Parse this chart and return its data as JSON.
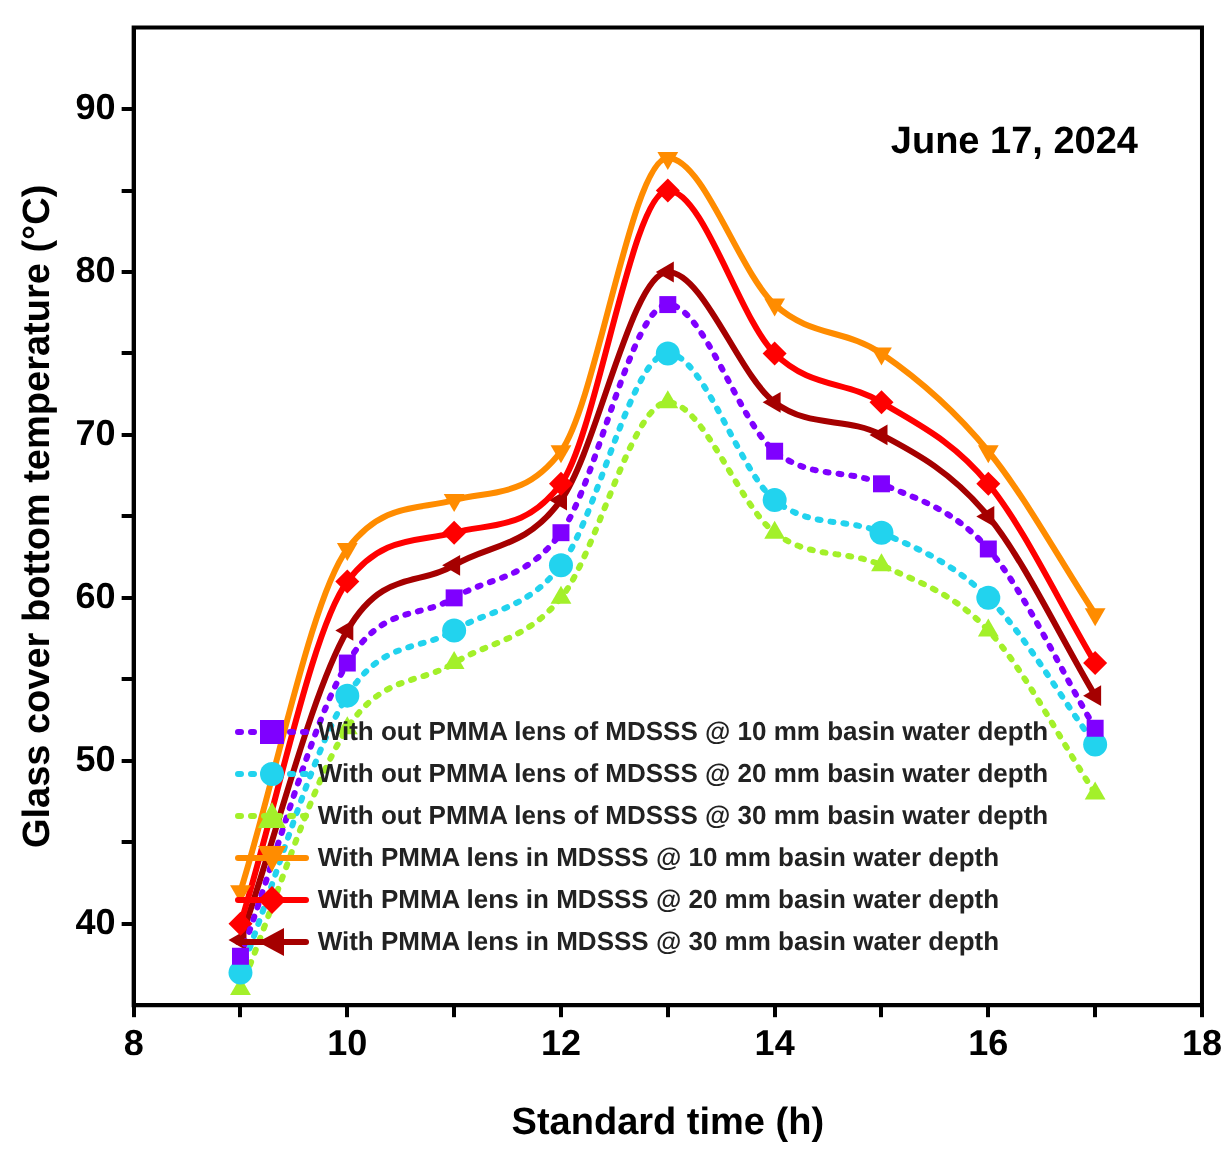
{
  "chart_data": {
    "type": "line",
    "annotations": [
      "June 17, 2024"
    ],
    "xlabel": "Standard time (h)",
    "ylabel": "Glass cover bottom temperature (°C)",
    "x": [
      9,
      10,
      11,
      12,
      13,
      14,
      15,
      16,
      17
    ],
    "xlim": [
      8,
      18
    ],
    "xticks": [
      8,
      {
        "value": 9,
        "label": null
      },
      10,
      {
        "value": 11,
        "label": null
      },
      12,
      {
        "value": 13,
        "label": null
      },
      14,
      {
        "value": 15,
        "label": null
      },
      16,
      {
        "value": 17,
        "label": null
      },
      18
    ],
    "ylim": [
      35,
      95
    ],
    "yticks": [
      40,
      {
        "value": 45,
        "label": null
      },
      50,
      {
        "value": 55,
        "label": null
      },
      60,
      {
        "value": 65,
        "label": null
      },
      70,
      {
        "value": 75,
        "label": null
      },
      80,
      {
        "value": 85,
        "label": null
      },
      90
    ],
    "grid": false,
    "legend": "bottom",
    "series": [
      {
        "name": "With out PMMA lens of MDSSS @ 10 mm basin water depth",
        "color": "#7f00ff",
        "marker": "square",
        "line_style": "dotted",
        "values": [
          38,
          56,
          60,
          64,
          78,
          69,
          67,
          63,
          52
        ]
      },
      {
        "name": "With out PMMA lens of MDSSS @ 20 mm basin water depth",
        "color": "#22d3ee",
        "marker": "circle",
        "line_style": "dotted",
        "values": [
          37,
          54,
          58,
          62,
          75,
          66,
          64,
          60,
          51
        ]
      },
      {
        "name": "With out PMMA lens of MDSSS @ 30 mm basin water depth",
        "color": "#a3f02a",
        "marker": "triangle",
        "line_style": "dotted",
        "values": [
          36,
          52,
          56,
          60,
          72,
          64,
          62,
          58,
          48
        ]
      },
      {
        "name": "With PMMA lens in MDSSS @ 10 mm basin water depth",
        "color": "#ff8c00",
        "marker": "triangle-down",
        "line_style": "solid",
        "values": [
          42,
          63,
          66,
          69,
          87,
          78,
          75,
          69,
          59
        ]
      },
      {
        "name": "With PMMA lens in MDSSS @ 20 mm basin water depth",
        "color": "#ff0000",
        "marker": "diamond",
        "line_style": "solid",
        "values": [
          40,
          61,
          64,
          67,
          85,
          75,
          72,
          67,
          56
        ]
      },
      {
        "name": "With PMMA lens in MDSSS @ 30 mm basin water depth",
        "color": "#a50000",
        "marker": "triangle-left",
        "line_style": "solid",
        "values": [
          39,
          58,
          62,
          66,
          80,
          72,
          70,
          65,
          54
        ]
      }
    ]
  }
}
